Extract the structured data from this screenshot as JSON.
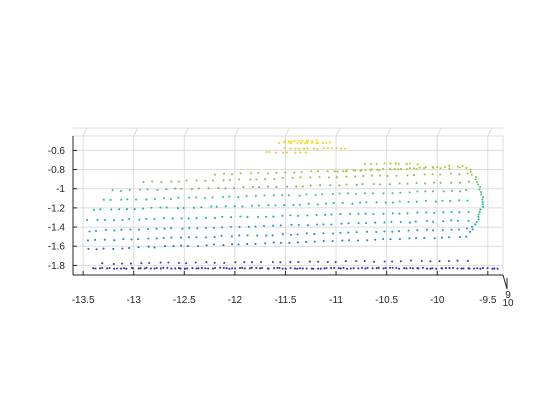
{
  "chart_data": {
    "type": "scatter",
    "title": "",
    "xlabel": "",
    "ylabel": "",
    "zlabel": "",
    "xlim": [
      -13.6,
      -9.35
    ],
    "zlim": [
      -1.9,
      -0.45
    ],
    "x_ticks": [
      "-13.5",
      "-13",
      "-12.5",
      "-12",
      "-11.5",
      "-11",
      "-10.5",
      "-10",
      "-9.5"
    ],
    "z_ticks": [
      "-0.6",
      "-0.8",
      "-1",
      "-1.2",
      "-1.4",
      "-1.6",
      "-1.8"
    ],
    "depth_ticks": [
      "9",
      "10"
    ],
    "grid": true,
    "colormap": "parula",
    "colors": {
      "low": "#3e26a8",
      "mid_low": "#1f8bd6",
      "mid": "#17bca7",
      "mid_high": "#a5be3a",
      "high": "#f5d925",
      "axis": "#262626",
      "grid": "#dcdcdc"
    },
    "point_groups": [
      {
        "name": "floor",
        "z": -1.83,
        "x_from": -13.4,
        "x_to": -9.4,
        "count": 120
      },
      {
        "name": "row",
        "z_left": -1.78,
        "z_right": -1.75,
        "x_from": -13.3,
        "x_to": -9.7,
        "count": 40
      },
      {
        "name": "row",
        "z_left": -1.63,
        "z_right": -1.5,
        "x_from": -13.45,
        "x_to": -9.7,
        "count": 46
      },
      {
        "name": "row",
        "z_left": -1.54,
        "z_right": -1.42,
        "x_from": -13.45,
        "x_to": -9.7,
        "count": 46
      },
      {
        "name": "row",
        "z_left": -1.44,
        "z_right": -1.33,
        "x_from": -13.45,
        "x_to": -9.7,
        "count": 46
      },
      {
        "name": "row",
        "z_left": -1.33,
        "z_right": -1.24,
        "x_from": -13.45,
        "x_to": -9.7,
        "count": 46
      },
      {
        "name": "row",
        "z_left": -1.22,
        "z_right": -1.12,
        "x_from": -13.4,
        "x_to": -9.7,
        "count": 46
      },
      {
        "name": "row",
        "z_left": -1.12,
        "z_right": -1.02,
        "x_from": -13.3,
        "x_to": -9.7,
        "count": 44
      },
      {
        "name": "row",
        "z_left": -1.02,
        "z_right": -0.93,
        "x_from": -13.2,
        "x_to": -9.7,
        "count": 42
      },
      {
        "name": "row",
        "z_left": -0.93,
        "z_right": -0.84,
        "x_from": -12.9,
        "x_to": -9.7,
        "count": 38
      },
      {
        "name": "row",
        "z_left": -0.85,
        "z_right": -0.78,
        "x_from": -12.2,
        "x_to": -9.7,
        "count": 30
      },
      {
        "name": "row",
        "z_left": -0.82,
        "z_right": -0.76,
        "x_from": -11.0,
        "x_to": -9.75,
        "count": 22
      },
      {
        "name": "top",
        "z": -0.74,
        "x_from": -10.7,
        "x_to": -10.2,
        "count": 10
      },
      {
        "name": "top",
        "z": -0.62,
        "x_from": -11.7,
        "x_to": -11.3,
        "count": 8
      },
      {
        "name": "top",
        "z": -0.58,
        "x_from": -11.5,
        "x_to": -10.9,
        "count": 14
      },
      {
        "name": "top",
        "z": -0.52,
        "x_from": -11.55,
        "x_to": -11.05,
        "count": 14
      },
      {
        "name": "top",
        "z": -0.5,
        "x_from": -11.5,
        "x_to": -11.2,
        "count": 10
      },
      {
        "name": "right-edge",
        "z_top": -0.8,
        "z_bottom": -1.45,
        "x_from": -9.68,
        "x_to": -9.55,
        "count": 26
      }
    ]
  }
}
